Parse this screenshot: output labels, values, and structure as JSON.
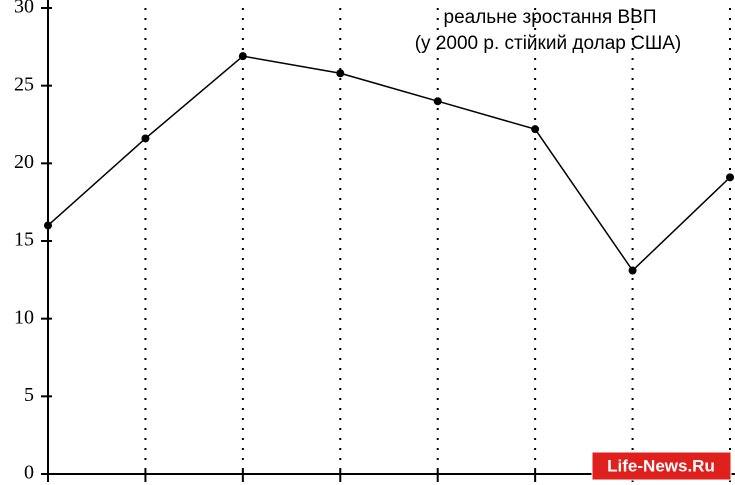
{
  "chart_data": {
    "type": "line",
    "title": "реальне зростання ВВП",
    "subtitle": "(у 2000 р. стійкий долар США)",
    "watermark": "Life-News.Ru",
    "categories": [
      null,
      null,
      null,
      null,
      null,
      null,
      null,
      null
    ],
    "series": [
      {
        "name": "реальне зростання ВВП",
        "color": "#000000",
        "values": [
          16.0,
          21.6,
          26.9,
          25.8,
          24.0,
          22.2,
          13.1,
          19.1
        ]
      }
    ],
    "ylim": [
      0,
      30
    ],
    "yticks": [
      0,
      5,
      10,
      15,
      20,
      25,
      30
    ],
    "grid": true
  }
}
